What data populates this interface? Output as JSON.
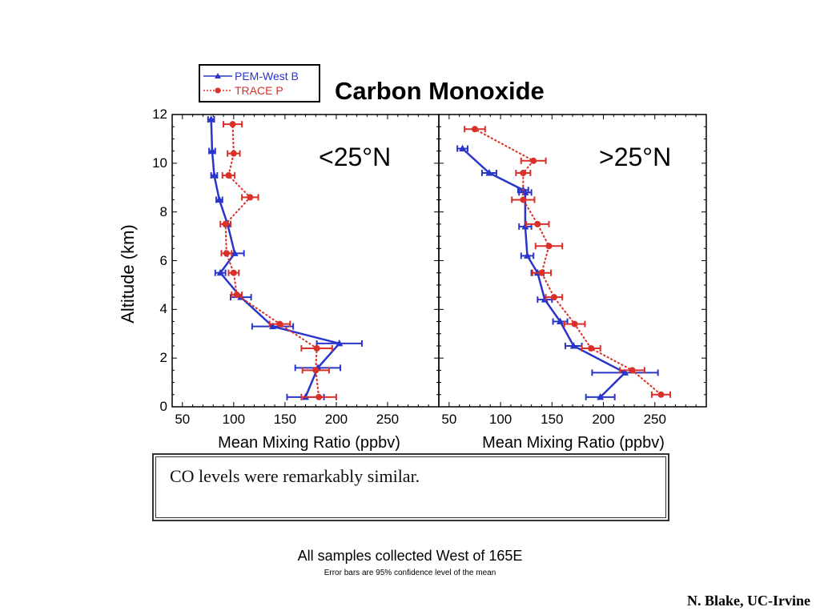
{
  "colors": {
    "pem_west_b": "#2a35c9",
    "trace_p": "#d9302a",
    "axis": "#000000"
  },
  "chart_data": {
    "type": "line",
    "title": "Carbon Monoxide",
    "ylabel": "Altitude (km)",
    "xlabel": "Mean Mixing Ratio (ppbv)",
    "ylim": [
      0,
      12
    ],
    "xlim": [
      40,
      300
    ],
    "x_ticks": [
      50,
      100,
      150,
      200,
      250
    ],
    "y_ticks": [
      0,
      2,
      4,
      6,
      8,
      10,
      12
    ],
    "legend_placement": "top-left",
    "legend": [
      "PEM-West B",
      "TRACE P"
    ],
    "panels": [
      {
        "label": "<25°N",
        "series": [
          {
            "name": "PEM-West B",
            "points": [
              {
                "x": 170,
                "y": 0.4,
                "err": 18
              },
              {
                "x": 182,
                "y": 1.6,
                "err": 22
              },
              {
                "x": 203,
                "y": 2.6,
                "err": 22
              },
              {
                "x": 138,
                "y": 3.3,
                "err": 20
              },
              {
                "x": 107,
                "y": 4.5,
                "err": 10
              },
              {
                "x": 87,
                "y": 5.5,
                "err": 5
              },
              {
                "x": 101,
                "y": 6.3,
                "err": 9
              },
              {
                "x": 94,
                "y": 7.5,
                "err": 3
              },
              {
                "x": 86,
                "y": 8.5,
                "err": 3
              },
              {
                "x": 81,
                "y": 9.5,
                "err": 3
              },
              {
                "x": 79,
                "y": 10.5,
                "err": 3
              },
              {
                "x": 78,
                "y": 11.8,
                "err": 3
              }
            ]
          },
          {
            "name": "TRACE P",
            "points": [
              {
                "x": 183,
                "y": 0.4,
                "err": 17
              },
              {
                "x": 180,
                "y": 1.5,
                "err": 13
              },
              {
                "x": 181,
                "y": 2.4,
                "err": 15
              },
              {
                "x": 145,
                "y": 3.4,
                "err": 10
              },
              {
                "x": 103,
                "y": 4.6,
                "err": 5
              },
              {
                "x": 100,
                "y": 5.5,
                "err": 5
              },
              {
                "x": 93,
                "y": 6.3,
                "err": 5
              },
              {
                "x": 92,
                "y": 7.5,
                "err": 5
              },
              {
                "x": 116,
                "y": 8.6,
                "err": 8
              },
              {
                "x": 95,
                "y": 9.5,
                "err": 6
              },
              {
                "x": 100,
                "y": 10.4,
                "err": 6
              },
              {
                "x": 99,
                "y": 11.6,
                "err": 9
              }
            ]
          }
        ]
      },
      {
        "label": ">25°N",
        "series": [
          {
            "name": "PEM-West B",
            "points": [
              {
                "x": 197,
                "y": 0.4,
                "err": 14
              },
              {
                "x": 221,
                "y": 1.4,
                "err": 32
              },
              {
                "x": 171,
                "y": 2.5,
                "err": 8
              },
              {
                "x": 158,
                "y": 3.5,
                "err": 7
              },
              {
                "x": 143,
                "y": 4.4,
                "err": 7
              },
              {
                "x": 136,
                "y": 5.5,
                "err": 6
              },
              {
                "x": 126,
                "y": 6.2,
                "err": 6
              },
              {
                "x": 124,
                "y": 7.4,
                "err": 6
              },
              {
                "x": 124,
                "y": 8.8,
                "err": 6
              },
              {
                "x": 122,
                "y": 8.9,
                "err": 5
              },
              {
                "x": 89,
                "y": 9.6,
                "err": 7
              },
              {
                "x": 63,
                "y": 10.6,
                "err": 5
              }
            ]
          },
          {
            "name": "TRACE P",
            "points": [
              {
                "x": 256,
                "y": 0.5,
                "err": 9
              },
              {
                "x": 228,
                "y": 1.5,
                "err": 12
              },
              {
                "x": 188,
                "y": 2.4,
                "err": 9
              },
              {
                "x": 172,
                "y": 3.4,
                "err": 10
              },
              {
                "x": 152,
                "y": 4.5,
                "err": 8
              },
              {
                "x": 140,
                "y": 5.5,
                "err": 9
              },
              {
                "x": 147,
                "y": 6.6,
                "err": 13
              },
              {
                "x": 136,
                "y": 7.5,
                "err": 11
              },
              {
                "x": 122,
                "y": 8.5,
                "err": 11
              },
              {
                "x": 122,
                "y": 9.6,
                "err": 7
              },
              {
                "x": 132,
                "y": 10.1,
                "err": 12
              },
              {
                "x": 75,
                "y": 11.4,
                "err": 10
              }
            ]
          }
        ]
      }
    ]
  },
  "note": "CO levels were remarkably similar.",
  "footer": {
    "main": "All samples collected West of 165E",
    "sub": "Error bars are 95% confidence level of the mean"
  },
  "credit": "N. Blake, UC-Irvine"
}
